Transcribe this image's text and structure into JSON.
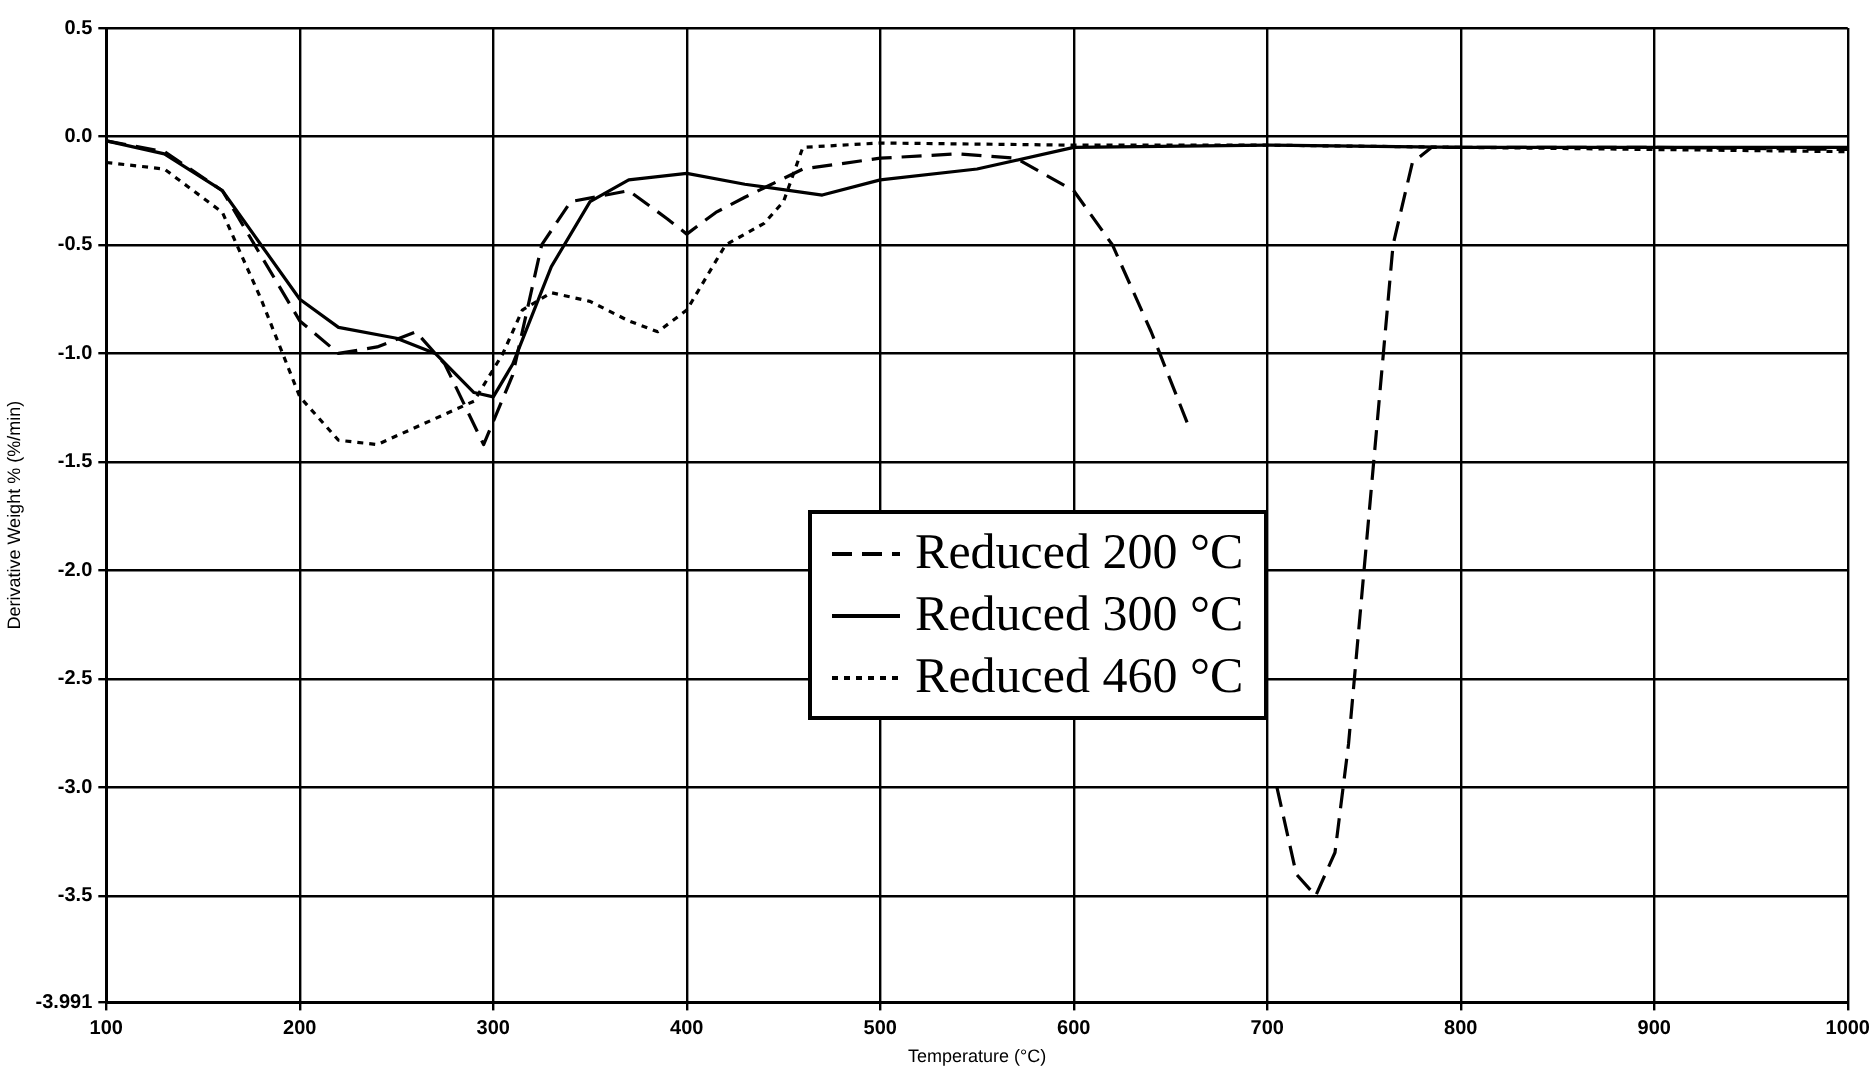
{
  "chart_data": {
    "type": "line",
    "xlabel": "Temperature (°C)",
    "ylabel": "Derivative Weight % (%/min)",
    "xlim": [
      100,
      1000
    ],
    "xticks": [
      100,
      200,
      300,
      400,
      500,
      600,
      700,
      800,
      900,
      1000
    ],
    "ylim": [
      -3.991,
      0.5
    ],
    "yticks": [
      {
        "value": 0.5,
        "label": "0.5"
      },
      {
        "value": 0,
        "label": "0.0"
      },
      {
        "value": -0.5,
        "label": "-0.5"
      },
      {
        "value": -1,
        "label": "-1.0"
      },
      {
        "value": -1.5,
        "label": "-1.5"
      },
      {
        "value": -2,
        "label": "-2.0"
      },
      {
        "value": -2.5,
        "label": "-2.5"
      },
      {
        "value": -3,
        "label": "-3.0"
      },
      {
        "value": -3.5,
        "label": "-3.5"
      },
      {
        "value": -3.991,
        "label": "-3.991"
      }
    ],
    "grid": true,
    "legend": "center",
    "marker": "none",
    "series": [
      {
        "name": "Reduced 200 °C",
        "color": "#000000",
        "line_style": "dashed",
        "x": [
          100,
          130,
          160,
          180,
          200,
          220,
          240,
          260,
          275,
          295,
          310,
          325,
          340,
          370,
          390,
          400,
          415,
          430,
          460,
          500,
          540,
          570,
          600,
          620,
          640,
          660,
          680,
          695,
          705,
          715,
          725,
          735,
          742,
          750,
          758,
          765,
          775,
          785,
          800,
          900,
          1000
        ],
        "values": [
          -0.02,
          -0.07,
          -0.25,
          -0.55,
          -0.85,
          -1.0,
          -0.97,
          -0.9,
          -1.05,
          -1.42,
          -1.1,
          -0.5,
          -0.3,
          -0.25,
          -0.38,
          -0.45,
          -0.35,
          -0.28,
          -0.15,
          -0.1,
          -0.08,
          -0.1,
          -0.25,
          -0.5,
          -0.9,
          -1.35,
          null,
          null,
          -3.0,
          -3.4,
          -3.5,
          -3.3,
          -2.8,
          -2.0,
          -1.2,
          -0.5,
          -0.12,
          -0.05,
          -0.05,
          -0.05,
          -0.06
        ]
      },
      {
        "name": "Reduced 300 °C",
        "color": "#000000",
        "line_style": "solid",
        "x": [
          100,
          130,
          160,
          180,
          200,
          220,
          250,
          270,
          290,
          300,
          310,
          330,
          350,
          370,
          400,
          430,
          470,
          500,
          550,
          600,
          700,
          800,
          900,
          1000
        ],
        "values": [
          -0.02,
          -0.08,
          -0.25,
          -0.5,
          -0.75,
          -0.88,
          -0.93,
          -1.0,
          -1.18,
          -1.2,
          -1.05,
          -0.6,
          -0.3,
          -0.2,
          -0.17,
          -0.22,
          -0.27,
          -0.2,
          -0.15,
          -0.05,
          -0.04,
          -0.05,
          -0.05,
          -0.05
        ]
      },
      {
        "name": "Reduced 460 °C",
        "color": "#000000",
        "line_style": "dotted",
        "x": [
          100,
          130,
          160,
          180,
          200,
          220,
          240,
          270,
          290,
          305,
          315,
          330,
          350,
          370,
          385,
          400,
          420,
          440,
          450,
          460,
          500,
          600,
          700,
          800,
          900,
          1000
        ],
        "values": [
          -0.12,
          -0.15,
          -0.35,
          -0.75,
          -1.2,
          -1.4,
          -1.42,
          -1.3,
          -1.22,
          -1.0,
          -0.8,
          -0.72,
          -0.76,
          -0.85,
          -0.9,
          -0.8,
          -0.5,
          -0.4,
          -0.3,
          -0.05,
          -0.03,
          -0.04,
          -0.04,
          -0.05,
          -0.06,
          -0.07
        ]
      }
    ]
  }
}
